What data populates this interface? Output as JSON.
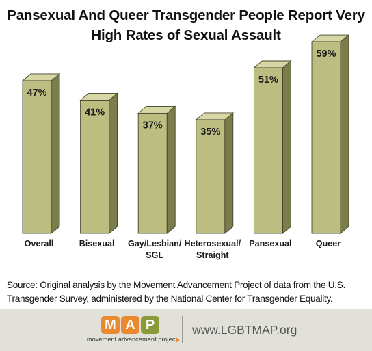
{
  "title_lines": [
    "Pansexual And Queer Transgender People Report Very",
    "High Rates of Sexual Assault"
  ],
  "chart_data": {
    "type": "bar",
    "categories": [
      "Overall",
      "Bisexual",
      "Gay/Lesbian/ SGL",
      "Heterosexual/ Straight",
      "Pansexual",
      "Queer"
    ],
    "category_lines": [
      [
        "Overall"
      ],
      [
        "Bisexual"
      ],
      [
        "Gay/Lesbian/",
        "SGL"
      ],
      [
        "Heterosexual/",
        "Straight"
      ],
      [
        "Pansexual"
      ],
      [
        "Queer"
      ]
    ],
    "values": [
      47,
      41,
      37,
      35,
      51,
      59
    ],
    "value_labels": [
      "47%",
      "41%",
      "37%",
      "35%",
      "51%",
      "59%"
    ],
    "bar_color": "#bcbd80",
    "ylim": [
      0,
      70
    ],
    "grid": false,
    "legend": false
  },
  "source": "Source: Original analysis by the Movement Advancement Project of data from the U.S. Transgender Survey, administered by the National Center for Transgender Equality.",
  "footer": {
    "logo_letters": [
      "M",
      "A",
      "P"
    ],
    "logo_colors": [
      "#e98a2f",
      "#e98a2f",
      "#8a9a3b"
    ],
    "tagline": "movement advancement project",
    "website": "www.LGBTMAP.org"
  }
}
